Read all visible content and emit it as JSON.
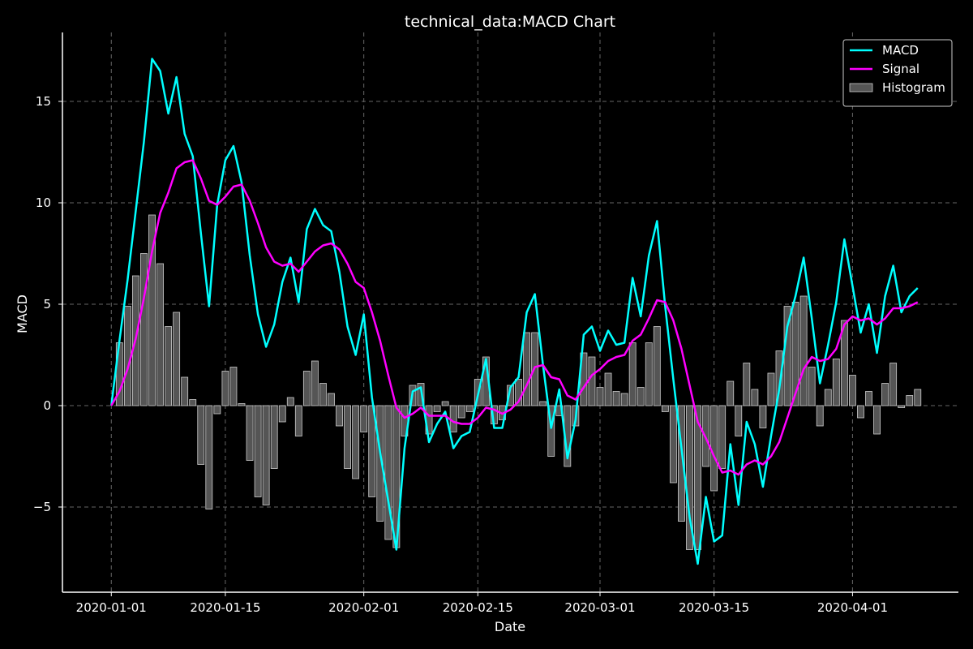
{
  "chart_data": {
    "type": "line",
    "title": "technical_data:MACD Chart",
    "xlabel": "Date",
    "ylabel": "MACD",
    "x_start": "2020-01-01",
    "x_step_days": 1,
    "xlim": [
      "2019-12-26",
      "2020-04-14"
    ],
    "ylim": [
      -9.2,
      18.4
    ],
    "grid": true,
    "legend_position": "top-right",
    "x_ticks": [
      {
        "date": "2020-01-01",
        "label": "2020-01-01"
      },
      {
        "date": "2020-01-15",
        "label": "2020-01-15"
      },
      {
        "date": "2020-02-01",
        "label": "2020-02-01"
      },
      {
        "date": "2020-02-15",
        "label": "2020-02-15"
      },
      {
        "date": "2020-03-01",
        "label": "2020-03-01"
      },
      {
        "date": "2020-03-15",
        "label": "2020-03-15"
      },
      {
        "date": "2020-04-01",
        "label": "2020-04-01"
      }
    ],
    "y_ticks": [
      {
        "value": 15,
        "label": "15"
      },
      {
        "value": 10,
        "label": "10"
      },
      {
        "value": 5,
        "label": "5"
      },
      {
        "value": 0,
        "label": "0"
      },
      {
        "value": -5,
        "label": "−5"
      }
    ],
    "colors": {
      "background": "#000000",
      "axis": "#ffffff",
      "grid": "#666666",
      "macd": "#00ffff",
      "signal": "#ff00ff",
      "histogram_fill": "#555555",
      "histogram_edge": "#cccccc"
    },
    "series": [
      {
        "name": "MACD",
        "kind": "line",
        "values": [
          0.0,
          3.2,
          6.2,
          9.6,
          13.0,
          17.1,
          16.5,
          14.4,
          16.2,
          13.4,
          12.3,
          8.5,
          4.9,
          9.9,
          12.1,
          12.8,
          11.0,
          7.4,
          4.5,
          2.9,
          4.0,
          6.1,
          7.3,
          5.1,
          8.7,
          9.7,
          8.9,
          8.6,
          6.6,
          3.9,
          2.5,
          4.5,
          0.4,
          -2.3,
          -4.7,
          -7.1,
          -2.1,
          0.7,
          0.9,
          -1.8,
          -0.9,
          -0.3,
          -2.1,
          -1.5,
          -1.3,
          0.5,
          2.3,
          -1.1,
          -1.1,
          0.9,
          1.4,
          4.6,
          5.5,
          2.0,
          -1.1,
          0.8,
          -2.6,
          -0.7,
          3.5,
          3.9,
          2.7,
          3.7,
          3.0,
          3.1,
          6.3,
          4.4,
          7.4,
          9.1,
          4.9,
          1.3,
          -2.1,
          -5.5,
          -7.8,
          -4.5,
          -6.7,
          -6.4,
          -1.9,
          -4.9,
          -0.8,
          -1.9,
          -4.0,
          -1.5,
          0.8,
          3.9,
          5.4,
          7.3,
          4.3,
          1.1,
          3.0,
          5.1,
          8.2,
          5.9,
          3.6,
          5.0,
          2.6,
          5.4,
          6.9,
          4.6,
          5.4,
          5.8
        ]
      },
      {
        "name": "Signal",
        "kind": "line",
        "values": [
          0.0,
          0.7,
          1.8,
          3.3,
          5.3,
          7.6,
          9.5,
          10.5,
          11.7,
          12.0,
          12.1,
          11.2,
          10.1,
          9.9,
          10.3,
          10.8,
          10.9,
          10.1,
          9.0,
          7.8,
          7.1,
          6.9,
          7.0,
          6.6,
          7.1,
          7.6,
          7.9,
          8.0,
          7.7,
          7.0,
          6.1,
          5.8,
          4.6,
          3.2,
          1.5,
          -0.1,
          -0.6,
          -0.4,
          -0.1,
          -0.5,
          -0.5,
          -0.5,
          -0.8,
          -0.9,
          -0.9,
          -0.6,
          -0.1,
          -0.2,
          -0.4,
          -0.2,
          0.2,
          1.0,
          1.9,
          2.0,
          1.4,
          1.3,
          0.5,
          0.3,
          0.9,
          1.5,
          1.8,
          2.2,
          2.4,
          2.5,
          3.2,
          3.5,
          4.3,
          5.2,
          5.1,
          4.2,
          2.8,
          1.0,
          -0.8,
          -1.6,
          -2.5,
          -3.3,
          -3.2,
          -3.4,
          -2.9,
          -2.7,
          -2.9,
          -2.5,
          -1.8,
          -0.6,
          0.6,
          1.8,
          2.4,
          2.2,
          2.3,
          2.8,
          4.0,
          4.4,
          4.2,
          4.3,
          4.0,
          4.3,
          4.8,
          4.8,
          4.9,
          5.1
        ]
      },
      {
        "name": "Histogram",
        "kind": "bar",
        "values": [
          0.0,
          3.1,
          4.9,
          6.4,
          7.5,
          9.4,
          7.0,
          3.9,
          4.6,
          1.4,
          0.3,
          -2.9,
          -5.1,
          -0.4,
          1.7,
          1.9,
          0.1,
          -2.7,
          -4.5,
          -4.9,
          -3.1,
          -0.8,
          0.4,
          -1.5,
          1.7,
          2.2,
          1.1,
          0.6,
          -1.0,
          -3.1,
          -3.6,
          -1.3,
          -4.5,
          -5.7,
          -6.6,
          -7.0,
          -1.5,
          1.0,
          1.1,
          -1.4,
          -0.3,
          0.2,
          -1.3,
          -0.6,
          -0.3,
          1.3,
          2.4,
          -0.9,
          -0.7,
          1.0,
          1.3,
          3.6,
          3.6,
          0.2,
          -2.5,
          -0.5,
          -3.0,
          -1.0,
          2.6,
          2.4,
          0.9,
          1.6,
          0.7,
          0.6,
          3.1,
          0.9,
          3.1,
          3.9,
          -0.3,
          -3.8,
          -5.7,
          -7.1,
          -7.1,
          -3.0,
          -4.2,
          -3.1,
          1.2,
          -1.5,
          2.1,
          0.8,
          -1.1,
          1.6,
          2.7,
          4.9,
          5.1,
          5.4,
          1.9,
          -1.0,
          0.8,
          2.3,
          4.2,
          1.5,
          -0.6,
          0.7,
          -1.4,
          1.1,
          2.1,
          -0.1,
          0.5,
          0.8
        ]
      }
    ]
  }
}
